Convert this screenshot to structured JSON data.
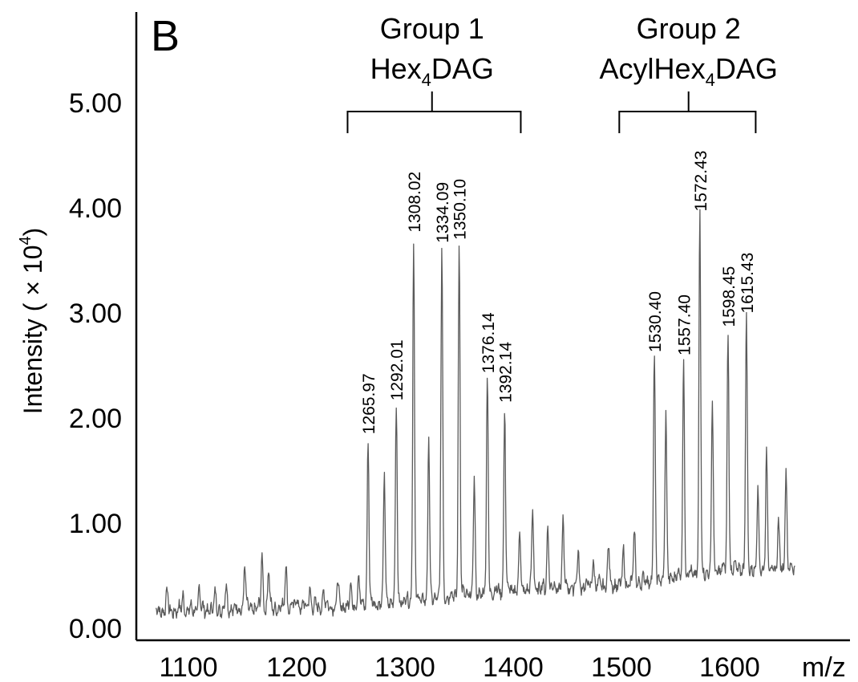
{
  "chart_data": {
    "type": "line",
    "panel_label": "B",
    "xlabel": "m/z",
    "ylabel": {
      "main": "Intensity ( × 10",
      "sup": "4",
      "close": ")"
    },
    "xlim": [
      1070,
      1660
    ],
    "ylim": [
      0,
      5.6
    ],
    "x_ticks": [
      1100,
      1200,
      1300,
      1400,
      1500,
      1600
    ],
    "x_tick_labels": [
      "1100",
      "1200",
      "1300",
      "1400",
      "1500",
      "1600"
    ],
    "y_ticks": [
      0,
      1,
      2,
      3,
      4,
      5
    ],
    "y_tick_labels": [
      "0.00",
      "1.00",
      "2.00",
      "3.00",
      "4.00",
      "5.00"
    ],
    "groups": [
      {
        "title": "Group 1",
        "label_main": "Hex",
        "label_sub": "4",
        "label_rest": "DAG",
        "range": [
          1247,
          1407
        ],
        "center": 1325
      },
      {
        "title": "Group 2",
        "label_main": "AcylHex",
        "label_sub": "4",
        "label_rest": "DAG",
        "range": [
          1498,
          1624
        ],
        "center": 1562
      }
    ],
    "baseline": [
      [
        1070,
        0.15
      ],
      [
        1150,
        0.17
      ],
      [
        1250,
        0.2
      ],
      [
        1300,
        0.25
      ],
      [
        1350,
        0.3
      ],
      [
        1400,
        0.35
      ],
      [
        1450,
        0.38
      ],
      [
        1500,
        0.4
      ],
      [
        1550,
        0.48
      ],
      [
        1600,
        0.55
      ],
      [
        1660,
        0.55
      ]
    ],
    "peaks": [
      {
        "x": 1080,
        "y": 0.35
      },
      {
        "x": 1095,
        "y": 0.3
      },
      {
        "x": 1110,
        "y": 0.38
      },
      {
        "x": 1125,
        "y": 0.32
      },
      {
        "x": 1135,
        "y": 0.4
      },
      {
        "x": 1152,
        "y": 0.6
      },
      {
        "x": 1168,
        "y": 0.7
      },
      {
        "x": 1174,
        "y": 0.55
      },
      {
        "x": 1190,
        "y": 0.62
      },
      {
        "x": 1200,
        "y": 0.3
      },
      {
        "x": 1212,
        "y": 0.38
      },
      {
        "x": 1225,
        "y": 0.35
      },
      {
        "x": 1238,
        "y": 0.42
      },
      {
        "x": 1250,
        "y": 0.4
      },
      {
        "x": 1257,
        "y": 0.5
      },
      {
        "x": 1265.97,
        "y": 1.8,
        "label": "1265.97"
      },
      {
        "x": 1281,
        "y": 1.42
      },
      {
        "x": 1292.01,
        "y": 2.12,
        "label": "1292.01"
      },
      {
        "x": 1308.02,
        "y": 3.72,
        "label": "1308.02"
      },
      {
        "x": 1322,
        "y": 1.76
      },
      {
        "x": 1334.09,
        "y": 3.62,
        "label": "1334.09"
      },
      {
        "x": 1350.1,
        "y": 3.65,
        "label": "1350.10"
      },
      {
        "x": 1364,
        "y": 1.36
      },
      {
        "x": 1376.14,
        "y": 2.38,
        "label": "1376.14"
      },
      {
        "x": 1392.14,
        "y": 2.1,
        "label": "1392.14"
      },
      {
        "x": 1406,
        "y": 0.88
      },
      {
        "x": 1418,
        "y": 1.12
      },
      {
        "x": 1432,
        "y": 0.98
      },
      {
        "x": 1446,
        "y": 1.0
      },
      {
        "x": 1460,
        "y": 0.7
      },
      {
        "x": 1474,
        "y": 0.65
      },
      {
        "x": 1488,
        "y": 0.78
      },
      {
        "x": 1502,
        "y": 0.72
      },
      {
        "x": 1512,
        "y": 0.9
      },
      {
        "x": 1530.4,
        "y": 2.58,
        "label": "1530.40"
      },
      {
        "x": 1541,
        "y": 2.02
      },
      {
        "x": 1557.4,
        "y": 2.55,
        "label": "1557.40"
      },
      {
        "x": 1572.43,
        "y": 3.92,
        "label": "1572.43"
      },
      {
        "x": 1584,
        "y": 2.12
      },
      {
        "x": 1598.45,
        "y": 2.82,
        "label": "1598.45"
      },
      {
        "x": 1615.43,
        "y": 2.95,
        "label": "1615.43"
      },
      {
        "x": 1626,
        "y": 1.28
      },
      {
        "x": 1634,
        "y": 1.65
      },
      {
        "x": 1645,
        "y": 1.0
      },
      {
        "x": 1652,
        "y": 1.52
      }
    ],
    "trace_color": "#5a5a5a"
  }
}
